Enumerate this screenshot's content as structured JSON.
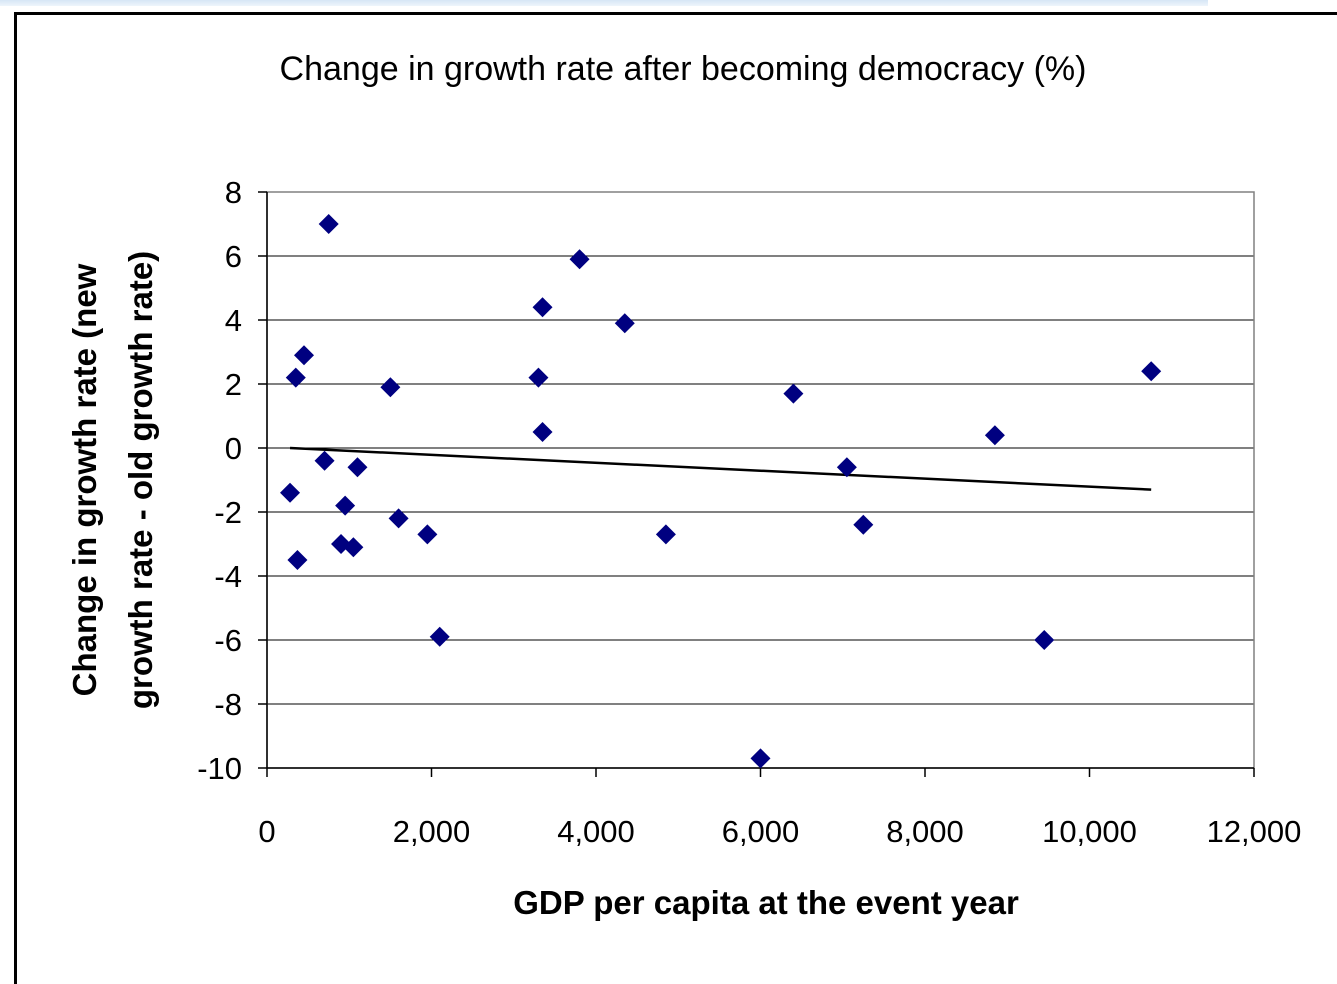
{
  "chart_data": {
    "type": "scatter",
    "title": "Change in growth rate after becoming democracy (%)",
    "xlabel": "GDP per capita at the event year",
    "ylabel_lines": [
      "Change in growth rate (new",
      "growth rate - old growth rate)"
    ],
    "xlim": [
      0,
      12000
    ],
    "ylim": [
      -10,
      8
    ],
    "x_ticks": [
      0,
      2000,
      4000,
      6000,
      8000,
      10000,
      12000
    ],
    "x_tick_labels": [
      "0",
      "2,000",
      "4,000",
      "6,000",
      "8,000",
      "10,000",
      "12,000"
    ],
    "y_ticks": [
      8,
      6,
      4,
      2,
      0,
      -2,
      -4,
      -6,
      -8,
      -10
    ],
    "y_tick_labels": [
      "8",
      "6",
      "4",
      "2",
      "0",
      "-2",
      "-4",
      "-6",
      "-8",
      "-10"
    ],
    "grid": "horizontal",
    "marker_color": "#000080",
    "line_color": "#000000",
    "points": [
      {
        "x": 750,
        "y": 7.0
      },
      {
        "x": 3800,
        "y": 5.9
      },
      {
        "x": 3350,
        "y": 4.4
      },
      {
        "x": 4350,
        "y": 3.9
      },
      {
        "x": 450,
        "y": 2.9
      },
      {
        "x": 350,
        "y": 2.2
      },
      {
        "x": 3300,
        "y": 2.2
      },
      {
        "x": 1500,
        "y": 1.9
      },
      {
        "x": 10750,
        "y": 2.4
      },
      {
        "x": 6400,
        "y": 1.7
      },
      {
        "x": 3350,
        "y": 0.5
      },
      {
        "x": 8850,
        "y": 0.4
      },
      {
        "x": 700,
        "y": -0.4
      },
      {
        "x": 1100,
        "y": -0.6
      },
      {
        "x": 7050,
        "y": -0.6
      },
      {
        "x": 280,
        "y": -1.4
      },
      {
        "x": 950,
        "y": -1.8
      },
      {
        "x": 1600,
        "y": -2.2
      },
      {
        "x": 7250,
        "y": -2.4
      },
      {
        "x": 1950,
        "y": -2.7
      },
      {
        "x": 4850,
        "y": -2.7
      },
      {
        "x": 900,
        "y": -3.0
      },
      {
        "x": 1050,
        "y": -3.1
      },
      {
        "x": 370,
        "y": -3.5
      },
      {
        "x": 2100,
        "y": -5.9
      },
      {
        "x": 9450,
        "y": -6.0
      },
      {
        "x": 6000,
        "y": -9.7
      }
    ],
    "trendline": {
      "x": [
        280,
        10750
      ],
      "y": [
        0.0,
        -1.3
      ]
    }
  }
}
